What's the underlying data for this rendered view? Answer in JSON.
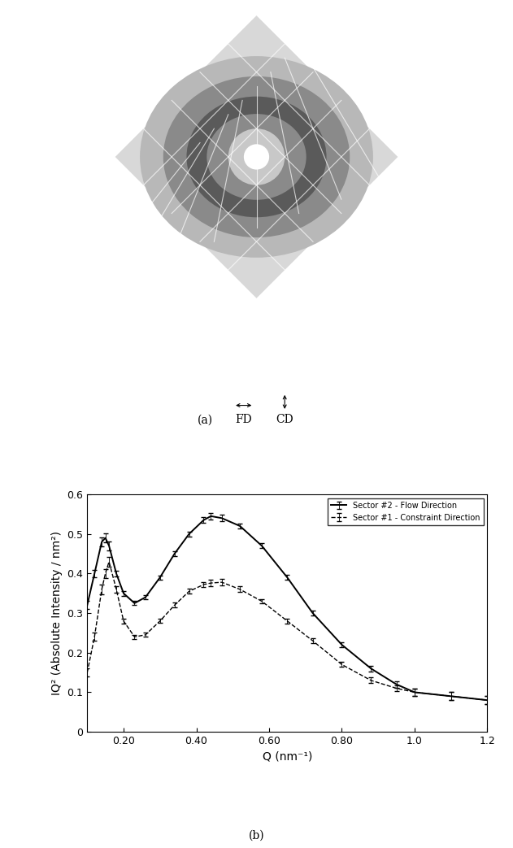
{
  "panel_a": {
    "label": "(a)",
    "flow_label": "FD",
    "constraint_label": "CD"
  },
  "chart_data": {
    "type": "line",
    "caption": "(b)",
    "x_label": "Q (nm⁻¹)",
    "y_label": "IQ² (Absolute Intensity / nm²)",
    "x": [
      0.1,
      0.12,
      0.14,
      0.15,
      0.16,
      0.18,
      0.2,
      0.23,
      0.26,
      0.3,
      0.34,
      0.38,
      0.42,
      0.44,
      0.47,
      0.52,
      0.58,
      0.65,
      0.72,
      0.8,
      0.88,
      0.95,
      1.0,
      1.1,
      1.2
    ],
    "series": [
      {
        "name": "Sector #2 - Flow Direction",
        "color": "#000000",
        "line_style": "solid",
        "values": [
          0.32,
          0.4,
          0.48,
          0.49,
          0.47,
          0.4,
          0.35,
          0.325,
          0.34,
          0.39,
          0.45,
          0.5,
          0.535,
          0.545,
          0.54,
          0.52,
          0.47,
          0.39,
          0.3,
          0.22,
          0.16,
          0.12,
          0.1,
          0.09,
          0.08
        ],
        "errors": [
          0.01,
          0.01,
          0.012,
          0.012,
          0.012,
          0.008,
          0.006,
          0.005,
          0.005,
          0.005,
          0.006,
          0.006,
          0.007,
          0.008,
          0.008,
          0.007,
          0.006,
          0.006,
          0.006,
          0.006,
          0.007,
          0.008,
          0.009,
          0.01,
          0.01
        ]
      },
      {
        "name": "Sector #1 - Constraint Direction",
        "color": "#000000",
        "line_style": "dashed",
        "values": [
          0.15,
          0.24,
          0.36,
          0.4,
          0.43,
          0.36,
          0.28,
          0.24,
          0.245,
          0.28,
          0.32,
          0.355,
          0.372,
          0.376,
          0.378,
          0.36,
          0.33,
          0.28,
          0.23,
          0.17,
          0.13,
          0.11,
          0.1,
          0.09,
          0.08
        ],
        "errors": [
          0.01,
          0.01,
          0.012,
          0.012,
          0.012,
          0.008,
          0.006,
          0.005,
          0.005,
          0.005,
          0.006,
          0.006,
          0.007,
          0.008,
          0.008,
          0.007,
          0.006,
          0.006,
          0.006,
          0.006,
          0.007,
          0.008,
          0.009,
          0.01,
          0.01
        ]
      }
    ],
    "xlim": [
      0.1,
      1.2
    ],
    "xticks": [
      {
        "value": 0.2,
        "label": "0.20"
      },
      {
        "value": 0.4,
        "label": "0.40"
      },
      {
        "value": 0.6,
        "label": "0.60"
      },
      {
        "value": 0.8,
        "label": "0.80"
      },
      {
        "value": 1.0,
        "label": "1.0"
      },
      1.2
    ],
    "ylim": [
      0,
      0.6
    ],
    "yticks": [
      0,
      0.1,
      0.2,
      0.3,
      0.4,
      0.5,
      0.6
    ],
    "legend": "upper right",
    "grid": false
  }
}
